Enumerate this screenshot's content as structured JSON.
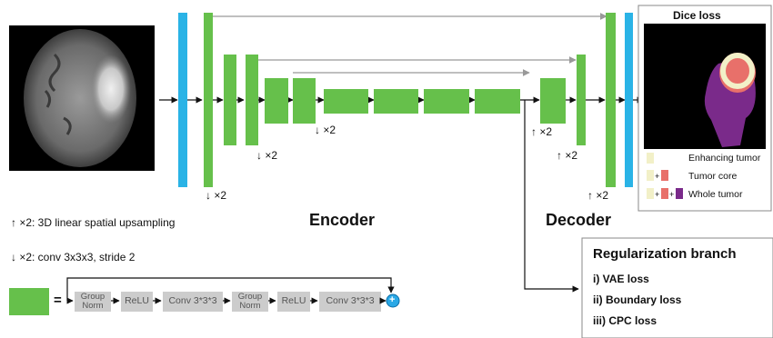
{
  "labels": {
    "down1": "↓ ×2",
    "down2": "↓ ×2",
    "down3": "↓ ×2",
    "up1": "↑ ×2",
    "up2": "↑ ×2",
    "up3": "↑ ×2",
    "encoder": "Encoder",
    "decoder": "Decoder"
  },
  "legend": {
    "upsampling": "↑ ×2: 3D linear spatial upsampling",
    "downsampling": "↓ ×2: conv 3x3x3, stride 2"
  },
  "block": {
    "equals": "=",
    "steps": [
      "Group Norm",
      "ReLU",
      "Conv 3*3*3",
      "Group Norm",
      "ReLU",
      "Conv 3*3*3"
    ],
    "plus": "+"
  },
  "dice_panel": {
    "title": "Dice loss",
    "items": [
      {
        "label": "Enhancing tumor"
      },
      {
        "label": "Tumor core"
      },
      {
        "label": "Whole tumor"
      }
    ]
  },
  "regularization": {
    "title": "Regularization branch",
    "items": [
      "i) VAE loss",
      "ii) Boundary loss",
      "iii) CPC loss"
    ]
  },
  "colors": {
    "green": "#66c04b",
    "blue": "#2ab3e6",
    "gray_box": "#cccccc",
    "enhancing": "#f2f0c8",
    "core": "#e8706a",
    "whole": "#7a2a8a",
    "plus_circle": "#2aa8e6"
  }
}
